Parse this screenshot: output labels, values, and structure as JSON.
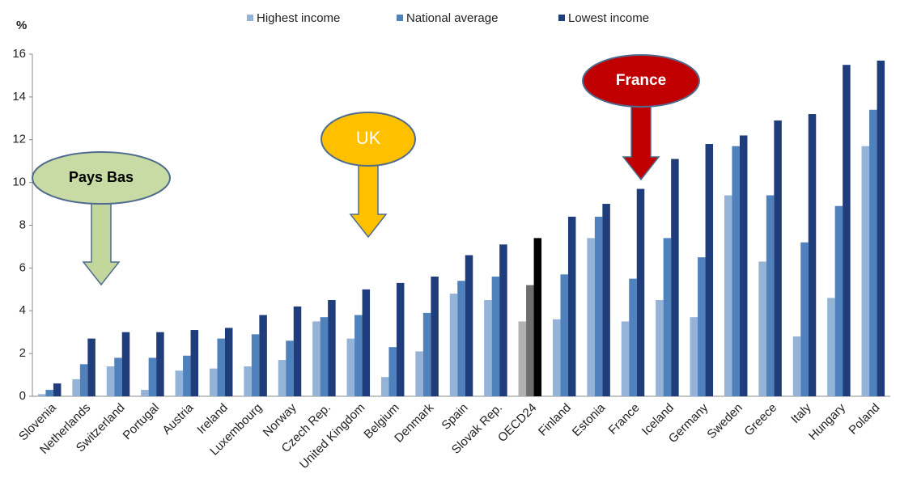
{
  "chart_data": {
    "type": "bar",
    "y_label": "%",
    "categories": [
      "Slovenia",
      "Netherlands",
      "Switzerland",
      "Portugal",
      "Austria",
      "Ireland",
      "Luxembourg",
      "Norway",
      "Czech Rep.",
      "United Kingdom",
      "Belgium",
      "Denmark",
      "Spain",
      "Slovak Rep.",
      "OECD24",
      "Finland",
      "Estonia",
      "France",
      "Iceland",
      "Germany",
      "Sweden",
      "Greece",
      "Italy",
      "Hungary",
      "Poland"
    ],
    "series": [
      {
        "name": "Highest income",
        "color": "#95b3d7",
        "values": [
          0.1,
          0.8,
          1.4,
          0.3,
          1.2,
          1.3,
          1.4,
          1.7,
          3.5,
          2.7,
          0.9,
          2.1,
          4.8,
          4.5,
          3.5,
          3.6,
          7.4,
          3.5,
          4.5,
          3.7,
          9.4,
          6.3,
          2.8,
          4.6,
          11.7
        ]
      },
      {
        "name": "National average",
        "color": "#4f81bd",
        "values": [
          0.3,
          1.5,
          1.8,
          1.8,
          1.9,
          2.7,
          2.9,
          2.6,
          3.7,
          3.8,
          2.3,
          3.9,
          5.4,
          5.6,
          5.2,
          5.7,
          8.4,
          5.5,
          7.4,
          6.5,
          11.7,
          9.4,
          7.2,
          8.9,
          13.4
        ]
      },
      {
        "name": "Lowest income",
        "color": "#1f3d7a",
        "values": [
          0.6,
          2.7,
          3.0,
          3.0,
          3.1,
          3.2,
          3.8,
          4.2,
          4.5,
          5.0,
          5.3,
          5.6,
          6.6,
          7.1,
          7.4,
          8.4,
          9.0,
          9.7,
          11.1,
          11.8,
          12.2,
          12.9,
          13.2,
          15.5,
          15.7
        ]
      }
    ],
    "highlight_index": 14,
    "highlight_colors": [
      "#b0b0b0",
      "#6e6e6e",
      "#000000"
    ],
    "ylim": [
      0,
      16
    ],
    "yticks": [
      0,
      2,
      4,
      6,
      8,
      10,
      12,
      14,
      16
    ],
    "grid": false,
    "annotations": [
      {
        "text": "Pays Bas",
        "fill": "#c9dba4",
        "text_color": "#000000",
        "arrow_color": "#c3d69b"
      },
      {
        "text": "UK",
        "fill": "#ffc000",
        "text_color": "#ffffff",
        "arrow_color": "#ffc000"
      },
      {
        "text": "France",
        "fill": "#c00000",
        "text_color": "#ffffff",
        "arrow_color": "#c00000"
      }
    ]
  }
}
